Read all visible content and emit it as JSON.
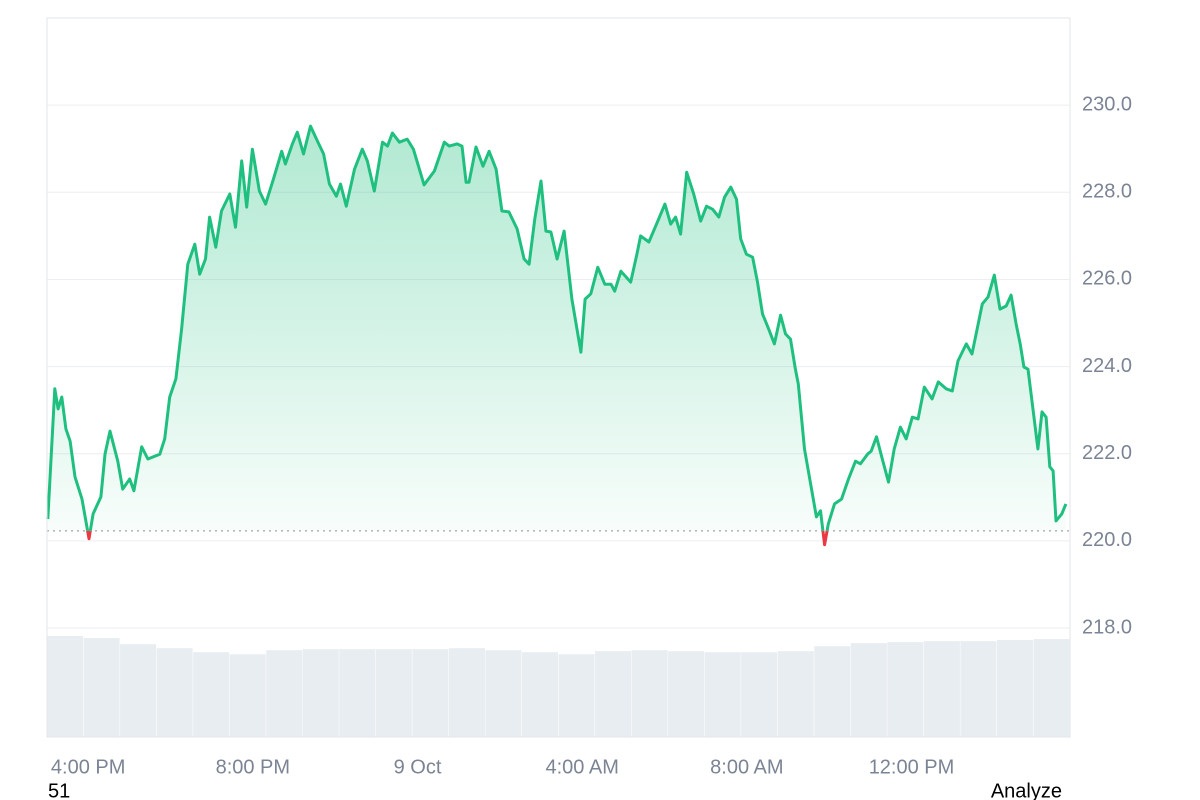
{
  "chart_data": {
    "type": "line",
    "x": [
      15.02,
      15.19,
      15.27,
      15.36,
      15.46,
      15.56,
      15.68,
      15.85,
      16.02,
      16.12,
      16.31,
      16.41,
      16.53,
      16.72,
      16.84,
      17.01,
      17.11,
      17.3,
      17.45,
      17.74,
      17.86,
      17.98,
      18.13,
      18.27,
      18.42,
      18.59,
      18.71,
      18.85,
      18.95,
      19.1,
      19.24,
      19.44,
      19.58,
      19.73,
      19.85,
      19.99,
      20.16,
      20.31,
      20.5,
      20.7,
      20.79,
      20.96,
      21.08,
      21.23,
      21.4,
      21.57,
      21.72,
      21.86,
      22.03,
      22.13,
      22.27,
      22.47,
      22.66,
      22.78,
      22.95,
      23.15,
      23.27,
      23.39,
      23.56,
      23.75,
      23.9,
      24.16,
      24.41,
      24.65,
      24.77,
      24.96,
      25.08,
      25.18,
      25.25,
      25.42,
      25.59,
      25.74,
      25.91,
      26.05,
      26.22,
      26.42,
      26.59,
      26.71,
      26.85,
      27.0,
      27.12,
      27.24,
      27.39,
      27.56,
      27.75,
      27.97,
      28.07,
      28.21,
      28.38,
      28.55,
      28.7,
      28.79,
      28.94,
      29.18,
      29.33,
      29.42,
      29.62,
      29.86,
      30.01,
      30.15,
      30.27,
      30.39,
      30.54,
      30.71,
      30.88,
      31.02,
      31.17,
      31.32,
      31.46,
      31.61,
      31.75,
      31.85,
      31.99,
      32.14,
      32.26,
      32.38,
      32.53,
      32.67,
      32.82,
      32.94,
      33.06,
      33.18,
      33.25,
      33.4,
      33.55,
      33.69,
      33.79,
      33.89,
      33.98,
      34.13,
      34.3,
      34.47,
      34.64,
      34.76,
      34.93,
      35.02,
      35.15,
      35.29,
      35.44,
      35.58,
      35.73,
      35.87,
      36.02,
      36.16,
      36.31,
      36.5,
      36.65,
      36.84,
      36.99,
      37.13,
      37.33,
      37.47,
      37.72,
      37.86,
      38.01,
      38.15,
      38.3,
      38.42,
      38.54,
      38.64,
      38.73,
      38.83,
      38.98,
      39.07,
      39.17,
      39.27,
      39.36,
      39.44,
      39.51,
      39.65,
      39.75
    ],
    "series": [
      {
        "color": "#1fc07f",
        "below_color": "#ea3943",
        "values": [
          220.5,
          223.49,
          223.03,
          223.3,
          222.57,
          222.29,
          221.47,
          220.96,
          220.05,
          220.62,
          221.01,
          221.99,
          222.52,
          221.83,
          221.19,
          221.42,
          221.15,
          222.16,
          221.88,
          221.99,
          222.34,
          223.3,
          223.72,
          224.86,
          226.35,
          226.81,
          226.12,
          226.47,
          227.43,
          226.74,
          227.57,
          227.96,
          227.2,
          228.72,
          227.66,
          228.99,
          228.03,
          227.73,
          228.3,
          228.94,
          228.65,
          229.11,
          229.38,
          228.88,
          229.52,
          229.17,
          228.88,
          228.19,
          227.91,
          228.19,
          227.68,
          228.53,
          228.99,
          228.72,
          228.03,
          229.15,
          229.06,
          229.36,
          229.15,
          229.22,
          228.99,
          228.17,
          228.49,
          229.15,
          229.06,
          229.11,
          229.06,
          228.23,
          228.23,
          229.04,
          228.6,
          228.94,
          228.53,
          227.57,
          227.55,
          227.16,
          226.47,
          226.35,
          227.39,
          228.26,
          227.11,
          227.09,
          226.47,
          227.11,
          225.55,
          224.33,
          225.55,
          225.67,
          226.28,
          225.89,
          225.89,
          225.73,
          226.19,
          225.94,
          226.58,
          227.0,
          226.86,
          227.39,
          227.73,
          227.27,
          227.43,
          227.04,
          228.46,
          227.96,
          227.34,
          227.68,
          227.61,
          227.43,
          227.89,
          228.12,
          227.84,
          226.93,
          226.58,
          226.51,
          225.94,
          225.21,
          224.86,
          224.52,
          225.18,
          224.75,
          224.63,
          223.94,
          223.6,
          222.11,
          221.31,
          220.55,
          220.69,
          219.91,
          220.39,
          220.85,
          220.96,
          221.42,
          221.83,
          221.77,
          221.99,
          222.06,
          222.39,
          221.88,
          221.35,
          222.11,
          222.61,
          222.34,
          222.84,
          222.8,
          223.53,
          223.26,
          223.65,
          223.49,
          223.44,
          224.13,
          224.52,
          224.29,
          225.44,
          225.6,
          226.1,
          225.32,
          225.39,
          225.64,
          224.98,
          224.52,
          223.99,
          223.94,
          222.8,
          222.11,
          222.96,
          222.84,
          221.7,
          221.61,
          220.46,
          220.62,
          220.85
        ]
      }
    ],
    "baseline": 220.23,
    "xlim": [
      15,
      39.85
    ],
    "xticks": [
      {
        "value": 16,
        "label": "4:00 PM"
      },
      {
        "value": 20,
        "label": "8:00 PM"
      },
      {
        "value": 24,
        "label": "9 Oct"
      },
      {
        "value": 28,
        "label": "4:00 AM"
      },
      {
        "value": 32,
        "label": "8:00 AM"
      },
      {
        "value": 36,
        "label": "12:00 PM"
      }
    ],
    "ylim": [
      215.5,
      232.0
    ],
    "yticks": [
      {
        "value": 218,
        "label": "218.0"
      },
      {
        "value": 220,
        "label": "220.0"
      },
      {
        "value": 222,
        "label": "222.0"
      },
      {
        "value": 224,
        "label": "224.0"
      },
      {
        "value": 226,
        "label": "226.0"
      },
      {
        "value": 228,
        "label": "228.0"
      },
      {
        "value": 230,
        "label": "230.0"
      }
    ],
    "grid": true,
    "volume": {
      "color": "#e8edf2",
      "ylim": [
        0,
        100
      ],
      "values": [
        100,
        98,
        92,
        88,
        84,
        82,
        86,
        87,
        87,
        87,
        87,
        88,
        86,
        84,
        82,
        85,
        86,
        85,
        84,
        84,
        85,
        90,
        93,
        94,
        95,
        95,
        96,
        97
      ]
    }
  },
  "footer": {
    "left": "51",
    "right": "Analyze"
  }
}
